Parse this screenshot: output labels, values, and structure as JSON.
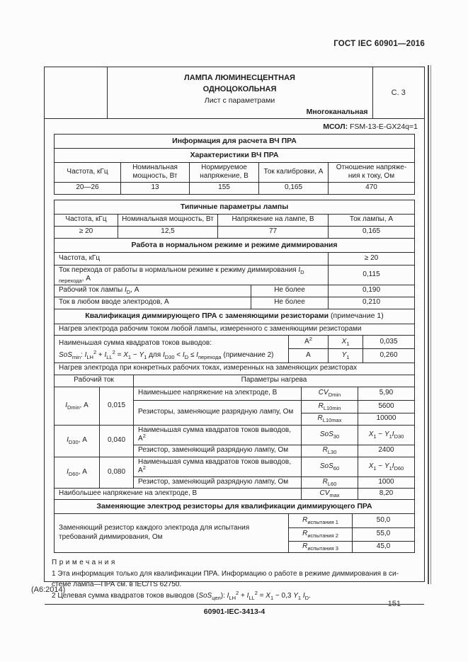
{
  "colors": {
    "ink": "#1d1d1d",
    "border": "#2b2b2b",
    "paper": "#fcfcfc"
  },
  "page": {
    "gost": "ГОСТ IEC 60901—2016",
    "amendment": "(А6:2014)",
    "page_number": "151",
    "doc_number": "60901-IEC-3413-4"
  },
  "title_block": {
    "line1": "ЛАМПА ЛЮМИНЕСЦЕНТНАЯ",
    "line2": "ОДНОЦОКОЛЬНАЯ",
    "line3": "Лист с параметрами",
    "channel": "Многоканальная",
    "sheet": "С. 3"
  },
  "mcol": {
    "label": "МСОЛ:",
    "value": "FSM-13-E-GX24q=1"
  },
  "info_table": {
    "title": "Информация для расчета ВЧ ПРА",
    "subtitle": "Характеристики ВЧ ПРА",
    "headers_html": [
      "Частота, кГц",
      "Номинальная мощность, Вт",
      "Нормируемое напряжение, В",
      "Ток калибровки, А",
      "Отношение напряже-<br>ния к току, Ом"
    ],
    "row": [
      "20—26",
      "13",
      "155",
      "0,165",
      "470"
    ]
  },
  "typical_table": {
    "title": "Типичные параметры лампы",
    "headers": [
      "Частота, кГц",
      "Номинальная мощность, Вт",
      "Напряжение на лампе, В",
      "Ток лампы, А"
    ],
    "row": [
      "≥ 20",
      "12,5",
      "77",
      "0,165"
    ]
  },
  "dimming": {
    "title": "Работа в нормальном режиме и режиме диммирования",
    "rows": [
      {
        "label_html": "Частота, кГц",
        "value": "≥ 20"
      },
      {
        "label_html": "Ток перехода от работы в нормальном режиме к режиму диммирования <i>I</i><sub>D перехода</sub>, А",
        "value": "0,115"
      },
      {
        "label_html": "Рабочий ток лампы <i>I</i><sub>D</sub>, А",
        "qualifier": "Не более",
        "value": "0,190"
      },
      {
        "label_html": "Ток в любом вводе электродов, А",
        "qualifier": "Не более",
        "value": "0,210"
      }
    ]
  },
  "qualification": {
    "title_html": "<b>Квалификация диммирующего ПРА с заменяющими резисторами</b> (примечание 1)",
    "heating_any": "Нагрев электрода рабочим током любой лампы, измеренного с заменяющими резисторами",
    "sos_label": "Наименьшая сумма квадратов токов выводов:",
    "sos_formula_html": "<i>SoS</i><sub>min</sub>: <i>I</i><sub>LH</sub><sup>2</sup> + <i>I</i><sub>LL</sub><sup>2</sup> = <i>X</i><sub>1</sub> − <i>Y</i><sub>1</sub> для <i>I</i><sub>D30</sub> &lt; <i>I</i><sub>D</sub> ≤ <i>I</i><sub>перехода</sub> (примечание 2)",
    "unit_a2_html": "А<sup>2</sup>",
    "unit_a": "А",
    "x1_html": "<i>X</i><sub>1</sub>",
    "x1_value": "0,035",
    "y1_html": "<i>Y</i><sub>1</sub>",
    "y1_value": "0,260",
    "heating_specific": "Нагрев электрода при конкретных рабочих токах, измеренных на заменяющих резисторах",
    "col_current": "Рабочий ток",
    "col_params": "Параметры нагрева",
    "groups": [
      {
        "sym_html": "<i>I</i><sub>Dmin</sub>, А",
        "value": "0,015",
        "rows": [
          {
            "desc_html": "Наименьшее напряжение на электроде, В",
            "sym_html": "<i>CV</i><sub>Dmin</sub>",
            "val_html": "5,90"
          },
          {
            "desc_html": "Резисторы, заменяющие разрядную лампу, Ом",
            "sym_html": "<i>R</i><sub>L10min</sub>",
            "val_html": "5600"
          },
          {
            "sym_html": "<i>R</i><sub>L10max</sub>",
            "val_html": "10000"
          }
        ]
      },
      {
        "sym_html": "<i>I</i><sub>D30</sub>, А",
        "value": "0,040",
        "rows": [
          {
            "desc_html": "Наименьшая сумма квадратов токов выводов, А<sup>2</sup>",
            "sym_html": "<i>SoS</i><sub>30</sub>",
            "val_html": "<i>X</i><sub>1</sub> − <i>Y</i><sub>1</sub><i>I</i><sub>D30</sub>"
          },
          {
            "desc_html": "Резистор, заменяющий разрядную лампу, Ом",
            "sym_html": "<i>R</i><sub>L30</sub>",
            "val_html": "2400"
          }
        ]
      },
      {
        "sym_html": "<i>I</i><sub>D60</sub>, А",
        "value": "0,080",
        "rows": [
          {
            "desc_html": "Наименьшая сумма квадратов токов выводов, А<sup>2</sup>",
            "sym_html": "<i>SoS</i><sub>60</sub>",
            "val_html": "<i>X</i><sub>1</sub> − <i>Y</i><sub>1</sub><i>I</i><sub>D60</sub>"
          },
          {
            "desc_html": "Резистор, заменяющий разрядную лампу, Ом",
            "sym_html": "<i>R</i><sub>L60</sub>",
            "val_html": "1000"
          }
        ]
      }
    ],
    "max_row": {
      "desc": "Наибольшее напряжение на электроде, В",
      "sym_html": "<i>CV</i><sub>max</sub>",
      "value": "8,20"
    }
  },
  "replacement": {
    "title": "Заменяющие электрод резисторы для квалификации диммирующего ПРА",
    "label": "Заменяющий резистор каждого электрода для испытания требований диммирования, Ом",
    "rows": [
      {
        "sym_html": "<i>R</i><sub>испытания 1</sub>",
        "value": "50,0"
      },
      {
        "sym_html": "<i>R</i><sub>испытания 2</sub>",
        "value": "55,0"
      },
      {
        "sym_html": "<i>R</i><sub>испытания 3</sub>",
        "value": "45,0"
      }
    ]
  },
  "notes": {
    "heading": "Примечания",
    "note1_html": "1 Эта информация только для квалификации ПРА. Информацию о работе в режиме диммирования в си-<br>стеме лампа—ПРА см. в IEC/TS 62750.",
    "note2_html": "2 Целевая сумма квадратов токов выводов (<i>SoS</i><sub>цел</sub>): <i>I</i><sub>LH</sub><sup>2</sup> + <i>I</i><sub>LL</sub><sup>2</sup> = <i>X</i><sub>1</sub> − 0,3 <i>Y</i><sub>1</sub> <i>I</i><sub>D</sub>."
  }
}
